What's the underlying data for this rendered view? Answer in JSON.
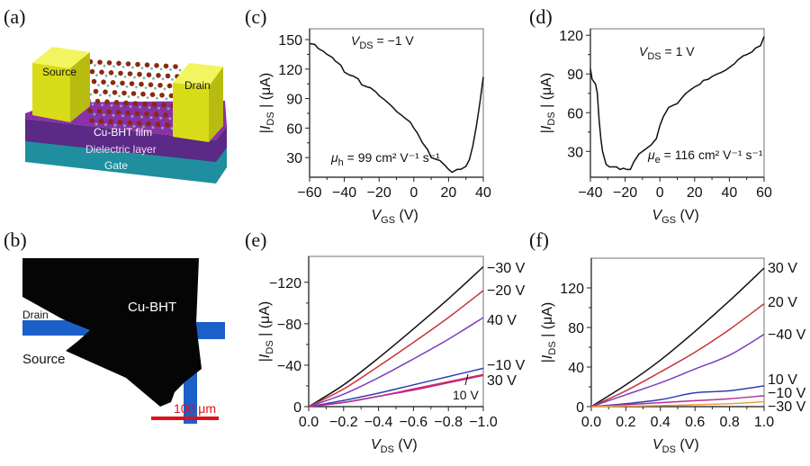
{
  "panel_labels": {
    "a": "(a)",
    "b": "(b)",
    "c": "(c)",
    "d": "(d)",
    "e": "(e)",
    "f": "(f)"
  },
  "panel_a": {
    "source": "Source",
    "drain": "Drain",
    "film": "Cu-BHT film",
    "dielectric": "Dielectric layer",
    "gate": "Gate",
    "colors": {
      "electrode": "#e2e61e",
      "film": "#7a2a9a",
      "gate": "#1f8e9e",
      "atoms": "#8a2a10"
    }
  },
  "panel_b": {
    "drain": "Drain",
    "source": "Source",
    "film": "Cu-BHT",
    "scale_bar": "100 μm",
    "colors": {
      "film": "#050505",
      "electrode": "#1b5fc8",
      "scale_bar": "#e0101a"
    }
  },
  "chart_data": [
    {
      "id": "c",
      "type": "line",
      "xlabel": {
        "var": "V",
        "sub": "GS",
        "rest": " (V)"
      },
      "ylabel": {
        "pre": "|",
        "var": "I",
        "sub": "DS",
        "rest": " | (μA)"
      },
      "xlim": [
        -60,
        40
      ],
      "ylim": [
        10,
        161
      ],
      "xticks": [
        -60,
        -40,
        -20,
        0,
        20,
        40
      ],
      "xtick_labels": [
        "−60",
        "−40",
        "−20",
        "0",
        "20",
        "40"
      ],
      "yticks": [
        30,
        60,
        90,
        120,
        150
      ],
      "ytick_labels": [
        "30",
        "60",
        "90",
        "120",
        "150"
      ],
      "annotations": [
        {
          "var": "V",
          "sub": "DS",
          "rest": " = −1 V"
        },
        {
          "var": "μ",
          "sub": "h",
          "rest": " = 99 cm² V⁻¹ s⁻¹"
        }
      ],
      "series": [
        {
          "color": "#111111",
          "x": [
            -60,
            -57,
            -55,
            -52,
            -50,
            -47,
            -45,
            -42,
            -40,
            -37,
            -35,
            -32,
            -30,
            -27,
            -25,
            -22,
            -20,
            -17,
            -15,
            -12,
            -10,
            -7,
            -5,
            -2,
            0,
            2,
            5,
            8,
            10,
            13,
            15,
            18,
            20,
            22,
            25,
            27,
            30,
            32,
            34,
            36,
            38,
            40
          ],
          "y": [
            146,
            145,
            141,
            138,
            135,
            132,
            128,
            124,
            117,
            114,
            113,
            110,
            104,
            102,
            101,
            97,
            93,
            89,
            86,
            81,
            77,
            73,
            70,
            66,
            60,
            55,
            45,
            38,
            30,
            28,
            27,
            22,
            18,
            15,
            18,
            18,
            21,
            28,
            42,
            62,
            85,
            112
          ]
        }
      ]
    },
    {
      "id": "d",
      "type": "line",
      "xlabel": {
        "var": "V",
        "sub": "GS",
        "rest": " (V)"
      },
      "ylabel": {
        "pre": "|",
        "var": "I",
        "sub": "DS",
        "rest": " | (μA)"
      },
      "xlim": [
        -40,
        60
      ],
      "ylim": [
        10,
        125
      ],
      "xticks": [
        -40,
        -20,
        0,
        20,
        40,
        60
      ],
      "xtick_labels": [
        "−40",
        "−20",
        "0",
        "20",
        "40",
        "60"
      ],
      "yticks": [
        30,
        60,
        90,
        120
      ],
      "ytick_labels": [
        "30",
        "60",
        "90",
        "120"
      ],
      "annotations": [
        {
          "var": "V",
          "sub": "DS",
          "rest": " = 1 V"
        },
        {
          "var": "μ",
          "sub": "e",
          "rest": " = 116 cm² V⁻¹ s⁻¹"
        }
      ],
      "series": [
        {
          "color": "#111111",
          "x": [
            -40,
            -39,
            -37,
            -36,
            -35,
            -34,
            -33,
            -31,
            -29,
            -27,
            -25,
            -23,
            -21,
            -19,
            -17,
            -15,
            -12,
            -8,
            -5,
            -2,
            0,
            2,
            5,
            8,
            10,
            13,
            15,
            18,
            20,
            23,
            25,
            28,
            30,
            33,
            35,
            38,
            40,
            43,
            45,
            48,
            50,
            53,
            55,
            58,
            60
          ],
          "y": [
            94,
            86,
            82,
            75,
            55,
            40,
            30,
            20,
            18,
            18,
            18,
            16,
            17,
            16,
            16,
            22,
            28,
            32,
            35,
            40,
            50,
            57,
            64,
            66,
            67,
            72,
            75,
            78,
            80,
            82,
            85,
            86,
            88,
            90,
            91,
            93,
            95,
            98,
            101,
            104,
            105,
            107,
            110,
            112,
            119
          ]
        }
      ]
    },
    {
      "id": "e",
      "type": "line",
      "xlabel": {
        "var": "V",
        "sub": "DS",
        "rest": " (V)"
      },
      "ylabel": {
        "pre": "|",
        "var": "I",
        "sub": "DS",
        "rest": " | (μA)"
      },
      "xlim": [
        0,
        -1.0
      ],
      "ylim": [
        0,
        -145
      ],
      "xticks": [
        0,
        -0.2,
        -0.4,
        -0.6,
        -0.8,
        -1.0
      ],
      "xtick_labels": [
        "0.0",
        "−0.2",
        "−0.4",
        "−0.6",
        "−0.8",
        "−1.0"
      ],
      "yticks": [
        0,
        -40,
        -80,
        -120
      ],
      "ytick_labels": [
        "0",
        "−40",
        "−80",
        "−120"
      ],
      "series": [
        {
          "name": "−30 V",
          "color": "#111111",
          "x": [
            0,
            -0.2,
            -0.4,
            -0.6,
            -0.8,
            -1.0
          ],
          "y": [
            0,
            -21,
            -47,
            -75,
            -104,
            -135
          ]
        },
        {
          "name": "−20 V",
          "color": "#c8343a",
          "x": [
            0,
            -0.2,
            -0.4,
            -0.6,
            -0.8,
            -1.0
          ],
          "y": [
            0,
            -17,
            -39,
            -62,
            -86,
            -112
          ]
        },
        {
          "name": "40 V",
          "color": "#7a3fc0",
          "x": [
            0,
            -0.2,
            -0.4,
            -0.6,
            -0.8,
            -1.0
          ],
          "y": [
            0,
            -12,
            -28,
            -46,
            -65,
            -86
          ]
        },
        {
          "name": "−10 V",
          "color": "#2f3fb0",
          "x": [
            0,
            -0.2,
            -0.4,
            -0.6,
            -0.8,
            -1.0
          ],
          "y": [
            0,
            -6,
            -13,
            -21,
            -29,
            -37
          ]
        },
        {
          "name": "30 V",
          "color": "#e0204a",
          "x": [
            0,
            -0.2,
            -0.4,
            -0.6,
            -0.8,
            -1.0
          ],
          "y": [
            0,
            -4,
            -10,
            -17,
            -24,
            -31
          ]
        },
        {
          "name": "10 V",
          "color": "#b0309a",
          "x": [
            0,
            -0.2,
            -0.4,
            -0.6,
            -0.8,
            -1.0
          ],
          "y": [
            0,
            -4,
            -10,
            -16,
            -23,
            -30
          ]
        }
      ]
    },
    {
      "id": "f",
      "type": "line",
      "xlabel": {
        "var": "V",
        "sub": "DS",
        "rest": " (V)"
      },
      "ylabel": {
        "pre": "|",
        "var": "I",
        "sub": "DS",
        "rest": " | (μA)"
      },
      "xlim": [
        0,
        1.0
      ],
      "ylim": [
        0,
        150
      ],
      "xticks": [
        0,
        0.2,
        0.4,
        0.6,
        0.8,
        1.0
      ],
      "xtick_labels": [
        "0.0",
        "0.2",
        "0.4",
        "0.6",
        "0.8",
        "1.0"
      ],
      "yticks": [
        0,
        40,
        80,
        120
      ],
      "ytick_labels": [
        "0",
        "40",
        "80",
        "120"
      ],
      "series": [
        {
          "name": "30 V",
          "color": "#111111",
          "x": [
            0,
            0.2,
            0.4,
            0.6,
            0.8,
            1.0
          ],
          "y": [
            0,
            22,
            47,
            76,
            107,
            140
          ]
        },
        {
          "name": "20 V",
          "color": "#c8343a",
          "x": [
            0,
            0.2,
            0.4,
            0.6,
            0.8,
            1.0
          ],
          "y": [
            0,
            16,
            35,
            55,
            78,
            104
          ]
        },
        {
          "name": "−40 V",
          "color": "#7a3fc0",
          "x": [
            0,
            0.2,
            0.4,
            0.6,
            0.8,
            1.0
          ],
          "y": [
            0,
            12,
            24,
            38,
            52,
            73
          ]
        },
        {
          "name": "10 V",
          "color": "#2f3fb0",
          "x": [
            0,
            0.2,
            0.4,
            0.6,
            0.8,
            1.0
          ],
          "y": [
            0,
            3,
            7,
            14,
            16,
            21
          ]
        },
        {
          "name": "−10 V",
          "color": "#b0309a",
          "x": [
            0,
            0.2,
            0.4,
            0.6,
            0.8,
            1.0
          ],
          "y": [
            0,
            2,
            4,
            6,
            8,
            11
          ]
        },
        {
          "name": "−30 V",
          "color": "#e8a040",
          "x": [
            0,
            0.2,
            0.4,
            0.6,
            0.8,
            1.0
          ],
          "y": [
            0,
            0.5,
            1,
            2,
            3,
            5
          ]
        }
      ]
    }
  ]
}
